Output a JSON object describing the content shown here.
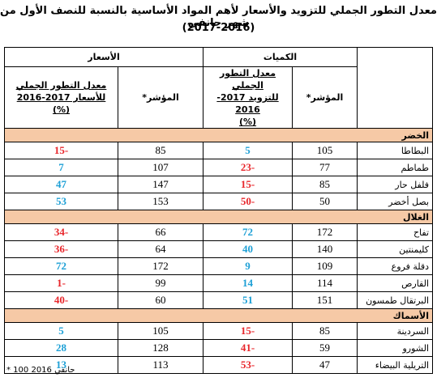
{
  "title": {
    "line1": "معدل التطور الجملي للتزويد والأسعار لأهم المواد الأساسية بالنسبة للنصف الأول من شهر جانفي",
    "line2": "(2017-2016)"
  },
  "table": {
    "group_headers": [
      "الكميات",
      "الأسعار"
    ],
    "column_headers": [
      [
        "المؤشر*"
      ],
      [
        "معدل التطور الجملي",
        "للتزويد 2017-2016",
        "(%)"
      ],
      [
        "المؤشر*"
      ],
      [
        "معدل التطور الجملي",
        "للأسعار 2017-2016",
        "(%)"
      ]
    ],
    "sections": [
      {
        "name": "الخضر",
        "rows": [
          {
            "product": "البطاطا",
            "values": [
              105,
              5,
              85,
              -15
            ]
          },
          {
            "product": "طماطم",
            "values": [
              77,
              -23,
              107,
              7
            ]
          },
          {
            "product": "فلفل حار",
            "values": [
              85,
              -15,
              147,
              47
            ]
          },
          {
            "product": "بصل أخضر",
            "values": [
              50,
              -50,
              153,
              53
            ]
          }
        ]
      },
      {
        "name": "الغلال",
        "rows": [
          {
            "product": "تفاح",
            "values": [
              172,
              72,
              66,
              -34
            ]
          },
          {
            "product": "كليمنتين",
            "values": [
              140,
              40,
              64,
              -36
            ]
          },
          {
            "product": "دقلة فروع",
            "values": [
              109,
              9,
              172,
              72
            ]
          },
          {
            "product": "القارص",
            "values": [
              114,
              14,
              99,
              -1
            ]
          },
          {
            "product": "البرتقال طمسون",
            "values": [
              151,
              51,
              60,
              -40
            ]
          }
        ]
      },
      {
        "name": "الأسماك",
        "rows": [
          {
            "product": "السردينة",
            "values": [
              85,
              -15,
              105,
              5
            ]
          },
          {
            "product": "الشورو",
            "values": [
              59,
              -41,
              128,
              28
            ]
          },
          {
            "product": "التريلية البيضاء",
            "values": [
              47,
              -53,
              113,
              13
            ]
          }
        ]
      }
    ]
  },
  "footnote": "* 100 جانفي 2016"
}
